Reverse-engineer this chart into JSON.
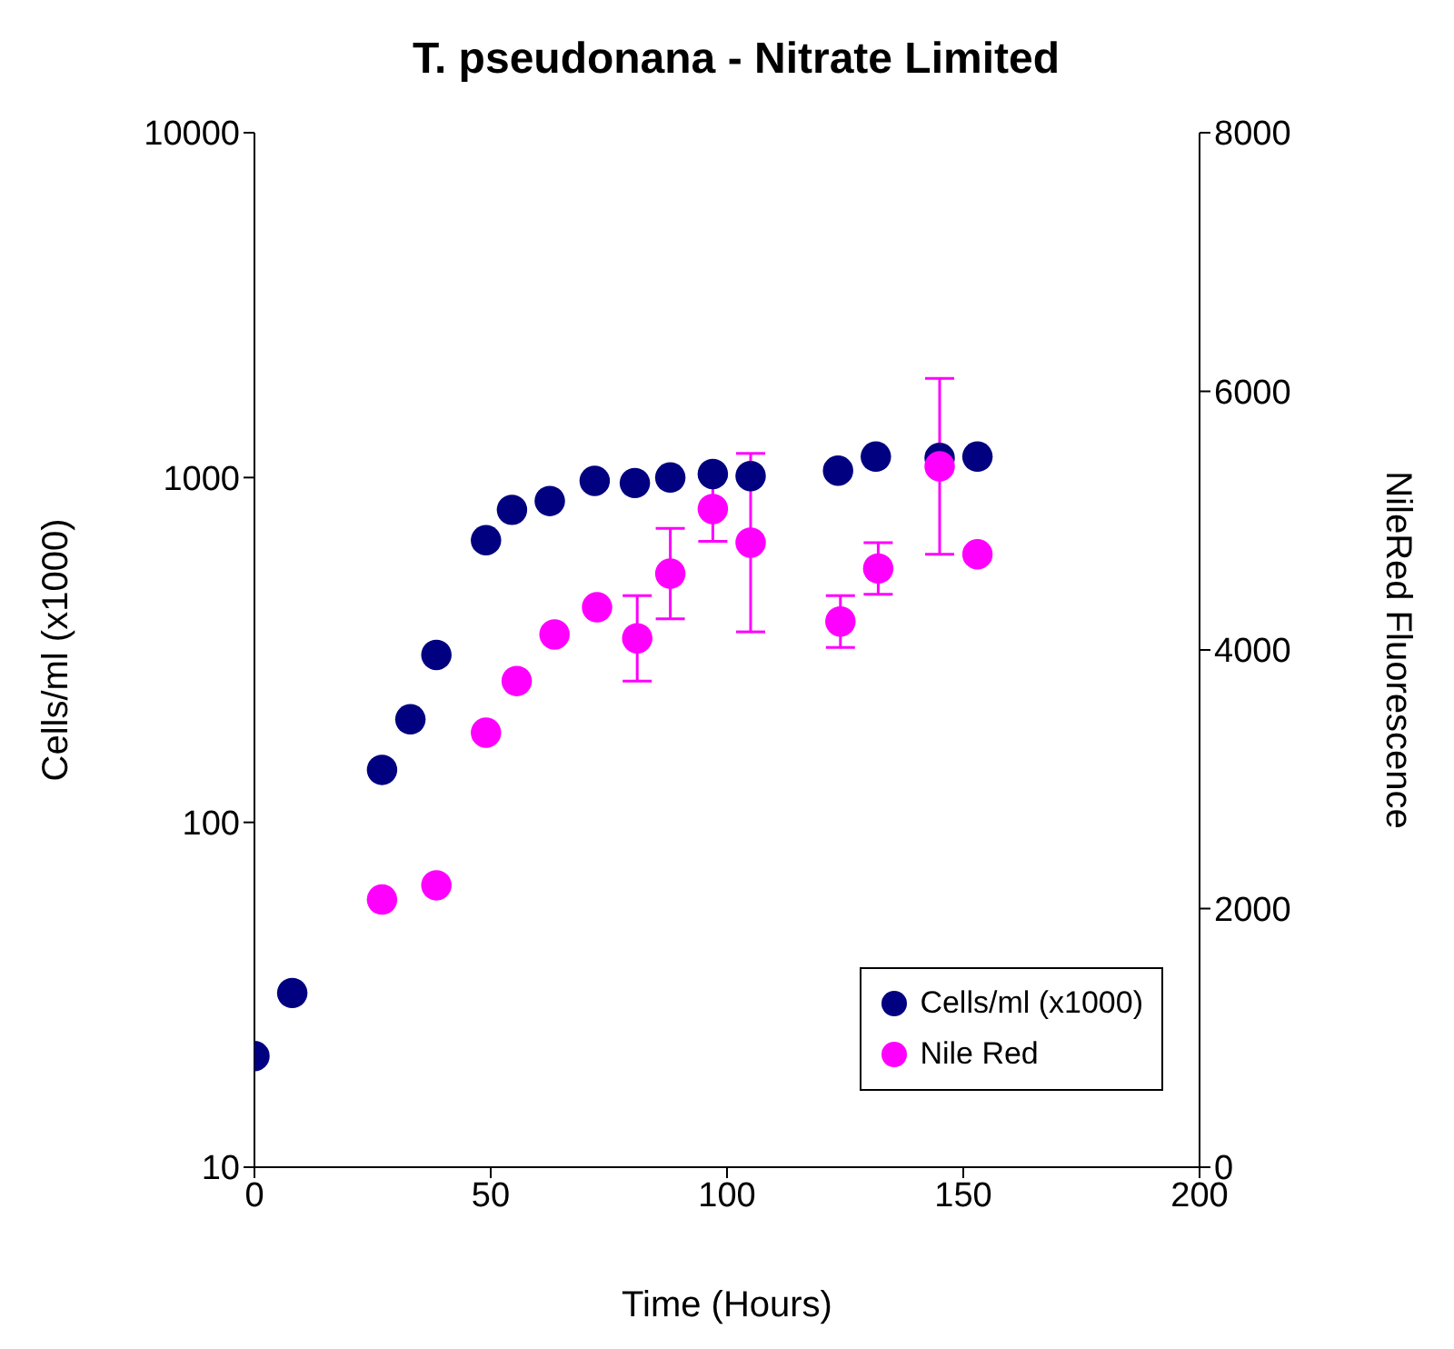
{
  "chart_data": {
    "type": "scatter",
    "title": "T. pseudonana - Nitrate Limited",
    "xlabel": "Time (Hours)",
    "ylabel": "Cells/ml (x1000)",
    "y2label": "NileRed Fluorescence",
    "series": [
      {
        "name": "Cells/ml (x1000)",
        "color": "#000080",
        "x": [
          0,
          8,
          27,
          33,
          38.5,
          49,
          54.5,
          62.5,
          72,
          80.5,
          88,
          97,
          105,
          123.5,
          131.5,
          145,
          153
        ],
        "values": [
          21,
          32,
          142,
          199,
          306,
          658,
          806,
          855,
          978,
          964,
          1000,
          1024,
          1010,
          1047,
          1150,
          1140,
          1150
        ]
      },
      {
        "name": "Nile Red",
        "color": "#ff00ff",
        "axis": "y2",
        "x": [
          27,
          38.5,
          49,
          55.5,
          63.5,
          72.5,
          81,
          88,
          97,
          105,
          124,
          132,
          145,
          153
        ],
        "values": [
          2070,
          2180,
          3360,
          3760,
          4120,
          4330,
          4090,
          4590,
          5090,
          4830,
          4220,
          4630,
          5420,
          4740
        ],
        "errors": [
          null,
          null,
          null,
          null,
          null,
          null,
          330,
          350,
          250,
          690,
          200,
          200,
          680,
          null
        ]
      }
    ],
    "xlim": [
      0,
      200
    ],
    "xticks": [
      0,
      50,
      100,
      150,
      200
    ],
    "ylim": [
      10,
      10000
    ],
    "yticks": [
      10,
      100,
      1000,
      10000
    ],
    "log": "y",
    "y2lim": [
      0,
      8000
    ],
    "y2ticks": [
      0,
      2000,
      4000,
      6000,
      8000
    ],
    "marker": "circle",
    "grid": false,
    "legend": "bottom right"
  }
}
